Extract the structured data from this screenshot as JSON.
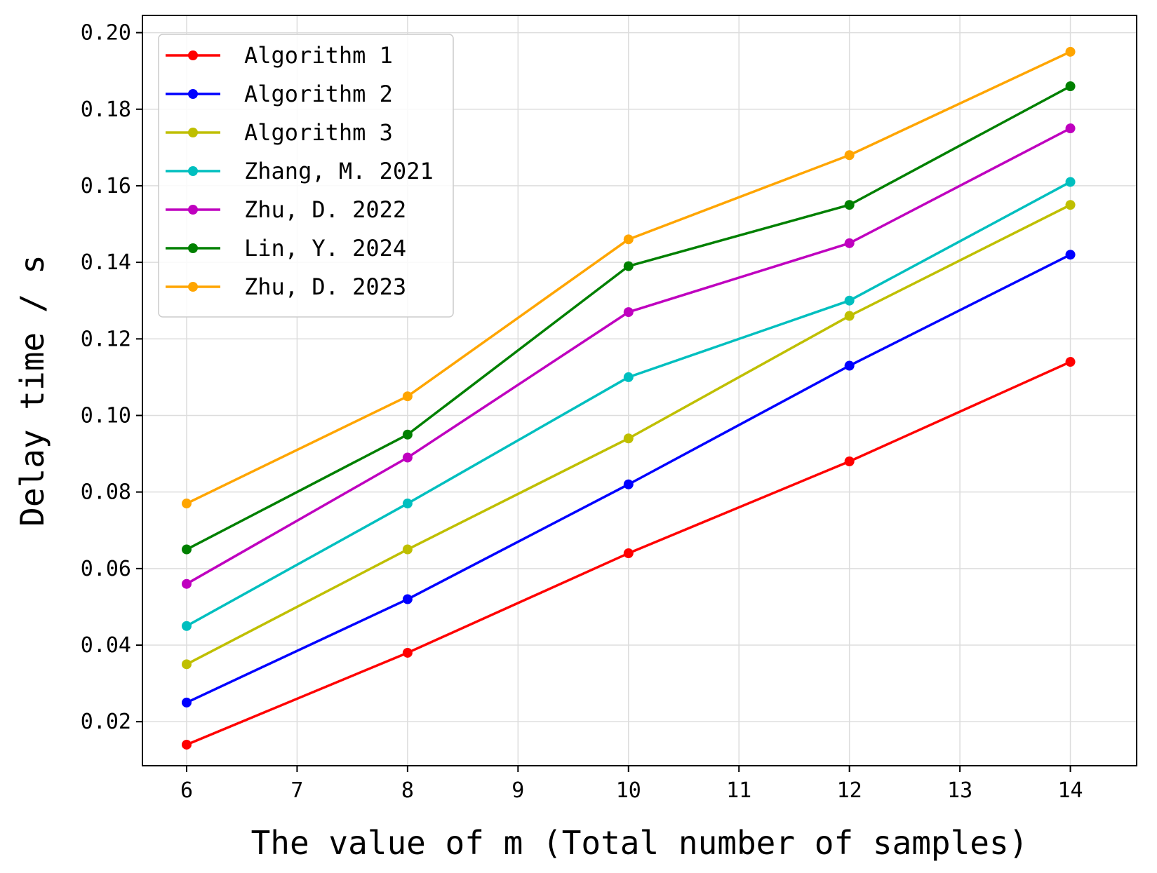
{
  "chart_data": {
    "type": "line",
    "title": "",
    "xlabel": "The value of m (Total number of samples)",
    "ylabel": "Delay time / s",
    "x": [
      6,
      8,
      10,
      12,
      14
    ],
    "xlim": [
      5.6,
      14.6
    ],
    "ylim": [
      0.0085,
      0.2045
    ],
    "xticks": [
      6,
      7,
      8,
      9,
      10,
      11,
      12,
      13,
      14
    ],
    "xtick_labels": [
      "6",
      "7",
      "8",
      "9",
      "10",
      "11",
      "12",
      "13",
      "14"
    ],
    "yticks": [
      0.02,
      0.04,
      0.06,
      0.08,
      0.1,
      0.12,
      0.14,
      0.16,
      0.18,
      0.2
    ],
    "ytick_labels": [
      "0.02",
      "0.04",
      "0.06",
      "0.08",
      "0.10",
      "0.12",
      "0.14",
      "0.16",
      "0.18",
      "0.20"
    ],
    "grid": true,
    "legend_position": "top-left",
    "series": [
      {
        "name": "Algorithm 1",
        "color": "#ff0000",
        "values": [
          0.014,
          0.038,
          0.064,
          0.088,
          0.114
        ]
      },
      {
        "name": "Algorithm 2",
        "color": "#0000ff",
        "values": [
          0.025,
          0.052,
          0.082,
          0.113,
          0.142
        ]
      },
      {
        "name": "Algorithm 3",
        "color": "#bfbf00",
        "values": [
          0.035,
          0.065,
          0.094,
          0.126,
          0.155
        ]
      },
      {
        "name": "Zhang, M. 2021",
        "color": "#00bfbf",
        "values": [
          0.045,
          0.077,
          0.11,
          0.13,
          0.161
        ]
      },
      {
        "name": "Zhu, D. 2022",
        "color": "#bf00bf",
        "values": [
          0.056,
          0.089,
          0.127,
          0.145,
          0.175
        ]
      },
      {
        "name": "Lin, Y. 2024",
        "color": "#008000",
        "values": [
          0.065,
          0.095,
          0.139,
          0.155,
          0.186
        ]
      },
      {
        "name": "Zhu, D. 2023",
        "color": "#ffa500",
        "values": [
          0.077,
          0.105,
          0.146,
          0.168,
          0.195
        ]
      }
    ]
  }
}
